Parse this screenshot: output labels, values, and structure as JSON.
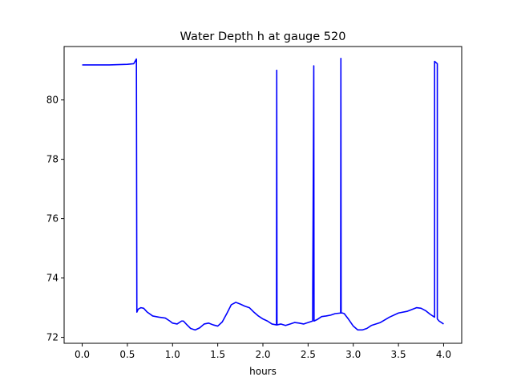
{
  "chart_data": {
    "type": "line",
    "title": "Water Depth h at gauge 520",
    "xlabel": "hours",
    "ylabel": "",
    "xlim": [
      -0.2,
      4.2
    ],
    "ylim": [
      71.8,
      81.8
    ],
    "xticks": [
      0.0,
      0.5,
      1.0,
      1.5,
      2.0,
      2.5,
      3.0,
      3.5,
      4.0
    ],
    "xtick_labels": [
      "0.0",
      "0.5",
      "1.0",
      "1.5",
      "2.0",
      "2.5",
      "3.0",
      "3.5",
      "4.0"
    ],
    "yticks": [
      72,
      74,
      76,
      78,
      80
    ],
    "ytick_labels": [
      "72",
      "74",
      "76",
      "78",
      "80"
    ],
    "grid": false,
    "legend": "none",
    "series": [
      {
        "color": "#0000ff",
        "x": [
          0.0,
          0.3,
          0.5,
          0.57,
          0.6,
          0.605,
          0.62,
          0.65,
          0.68,
          0.72,
          0.78,
          0.85,
          0.92,
          0.97,
          1.0,
          1.05,
          1.1,
          1.12,
          1.16,
          1.2,
          1.25,
          1.3,
          1.35,
          1.4,
          1.45,
          1.5,
          1.55,
          1.6,
          1.65,
          1.7,
          1.75,
          1.8,
          1.85,
          1.9,
          1.95,
          2.0,
          2.05,
          2.1,
          2.15,
          2.153,
          2.156,
          2.2,
          2.25,
          2.3,
          2.35,
          2.4,
          2.45,
          2.5,
          2.55,
          2.563,
          2.566,
          2.6,
          2.65,
          2.7,
          2.75,
          2.8,
          2.86,
          2.863,
          2.866,
          2.88,
          2.9,
          2.95,
          3.0,
          3.05,
          3.1,
          3.15,
          3.2,
          3.3,
          3.4,
          3.5,
          3.6,
          3.7,
          3.75,
          3.8,
          3.85,
          3.9,
          3.9,
          3.93,
          3.93,
          3.95,
          4.0
        ],
        "y": [
          81.18,
          81.18,
          81.2,
          81.22,
          81.38,
          72.85,
          72.95,
          73.0,
          72.98,
          72.85,
          72.72,
          72.68,
          72.65,
          72.55,
          72.48,
          72.45,
          72.55,
          72.55,
          72.42,
          72.3,
          72.25,
          72.32,
          72.45,
          72.48,
          72.42,
          72.38,
          72.52,
          72.8,
          73.1,
          73.18,
          73.12,
          73.05,
          73.0,
          72.85,
          72.72,
          72.62,
          72.55,
          72.45,
          72.42,
          81.0,
          72.42,
          72.45,
          72.4,
          72.45,
          72.5,
          72.48,
          72.45,
          72.5,
          72.55,
          81.15,
          72.55,
          72.6,
          72.7,
          72.72,
          72.75,
          72.8,
          72.82,
          81.4,
          72.82,
          72.82,
          72.8,
          72.6,
          72.38,
          72.25,
          72.25,
          72.3,
          72.4,
          72.5,
          72.68,
          72.82,
          72.88,
          73.0,
          72.98,
          72.9,
          72.78,
          72.68,
          81.3,
          81.22,
          72.62,
          72.55,
          72.45
        ]
      }
    ]
  }
}
